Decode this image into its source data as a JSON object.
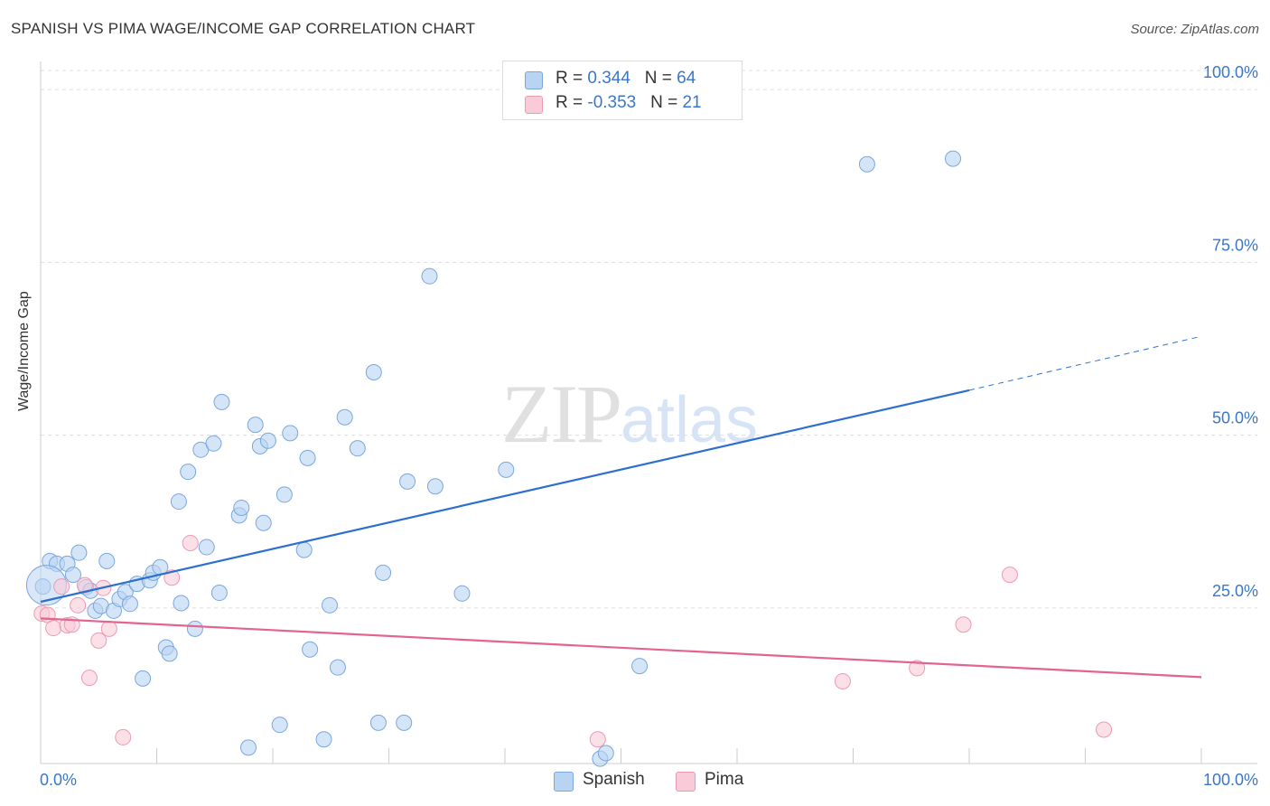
{
  "title": "SPANISH VS PIMA WAGE/INCOME GAP CORRELATION CHART",
  "source": "Source: ZipAtlas.com",
  "watermark": {
    "zip": "ZIP",
    "atlas": "atlas"
  },
  "colors": {
    "spanish_fill": "#b9d3f3",
    "spanish_stroke": "#7aa7de",
    "spanish_line": "#2c6fd0",
    "pima_fill": "#f9cbd8",
    "pima_stroke": "#ec9ab3",
    "pima_line": "#e2648f",
    "axis_text": "#3a77c9",
    "grid": "#dddddd"
  },
  "legend": {
    "rows": [
      {
        "r_label": "R = ",
        "r_value": "0.344",
        "n_label": "N = ",
        "n_value": "64"
      },
      {
        "r_label": "R = ",
        "r_value": "-0.353",
        "n_label": "N = ",
        "n_value": "21"
      }
    ],
    "series_names": [
      "Spanish",
      "Pima"
    ]
  },
  "chart_data": {
    "type": "scatter",
    "title": "SPANISH VS PIMA WAGE/INCOME GAP CORRELATION CHART",
    "xlabel": "",
    "ylabel": "Wage/Income Gap",
    "xlim": [
      0,
      100
    ],
    "ylim": [
      0,
      100
    ],
    "x_tick_labels": [
      "0.0%",
      "100.0%"
    ],
    "y_ticks": [
      25,
      50,
      75,
      100
    ],
    "y_tick_labels": [
      "25.0%",
      "50.0%",
      "75.0%",
      "100.0%"
    ],
    "grid": true,
    "series": [
      {
        "name": "Spanish",
        "r": 0.344,
        "n": 64,
        "points": [
          [
            0.2,
            25.6
          ],
          [
            0.8,
            29.3
          ],
          [
            1.4,
            28.9
          ],
          [
            2.3,
            28.9
          ],
          [
            2.8,
            27.3
          ],
          [
            3.3,
            30.5
          ],
          [
            3.9,
            25.5
          ],
          [
            4.3,
            25.0
          ],
          [
            4.7,
            22.1
          ],
          [
            5.2,
            22.8
          ],
          [
            5.7,
            29.3
          ],
          [
            6.3,
            22.1
          ],
          [
            6.8,
            23.8
          ],
          [
            7.3,
            24.8
          ],
          [
            7.7,
            23.1
          ],
          [
            8.3,
            26.0
          ],
          [
            8.8,
            12.3
          ],
          [
            9.4,
            26.5
          ],
          [
            9.7,
            27.6
          ],
          [
            10.3,
            28.4
          ],
          [
            10.8,
            16.8
          ],
          [
            11.1,
            15.9
          ],
          [
            11.9,
            37.9
          ],
          [
            12.1,
            23.2
          ],
          [
            12.7,
            42.2
          ],
          [
            13.3,
            19.5
          ],
          [
            13.8,
            45.4
          ],
          [
            14.3,
            31.3
          ],
          [
            14.9,
            46.3
          ],
          [
            15.4,
            24.7
          ],
          [
            15.6,
            52.3
          ],
          [
            17.1,
            35.9
          ],
          [
            17.3,
            37.0
          ],
          [
            17.9,
            2.3
          ],
          [
            18.5,
            49.0
          ],
          [
            18.9,
            45.9
          ],
          [
            19.2,
            34.8
          ],
          [
            19.6,
            46.7
          ],
          [
            20.6,
            5.6
          ],
          [
            21.0,
            38.9
          ],
          [
            21.5,
            47.8
          ],
          [
            22.7,
            30.9
          ],
          [
            23.0,
            44.2
          ],
          [
            23.2,
            16.5
          ],
          [
            24.4,
            3.5
          ],
          [
            24.9,
            22.9
          ],
          [
            25.6,
            13.9
          ],
          [
            26.2,
            50.1
          ],
          [
            27.3,
            45.6
          ],
          [
            28.7,
            56.6
          ],
          [
            29.1,
            5.9
          ],
          [
            29.5,
            27.6
          ],
          [
            31.3,
            5.9
          ],
          [
            31.6,
            40.8
          ],
          [
            33.5,
            70.5
          ],
          [
            34.0,
            40.1
          ],
          [
            36.3,
            24.6
          ],
          [
            40.1,
            42.5
          ],
          [
            48.2,
            0.7
          ],
          [
            48.7,
            1.5
          ],
          [
            51.6,
            14.1
          ],
          [
            71.2,
            86.7
          ],
          [
            78.6,
            87.5
          ],
          [
            0.5,
            25.8
          ]
        ],
        "trend": {
          "x_start": 0,
          "y_start": 23.4,
          "x_solid_end": 80,
          "y_solid_end": 54.0,
          "x_dash_end": 100,
          "y_dash_end": 61.8
        }
      },
      {
        "name": "Pima",
        "r": -0.353,
        "n": 21,
        "points": [
          [
            0.1,
            21.7
          ],
          [
            0.6,
            21.5
          ],
          [
            1.1,
            19.6
          ],
          [
            1.8,
            25.6
          ],
          [
            2.3,
            20.0
          ],
          [
            2.7,
            20.1
          ],
          [
            3.2,
            22.9
          ],
          [
            3.8,
            25.8
          ],
          [
            4.2,
            12.4
          ],
          [
            5.0,
            17.8
          ],
          [
            5.4,
            25.4
          ],
          [
            5.9,
            19.5
          ],
          [
            7.1,
            3.8
          ],
          [
            12.9,
            31.9
          ],
          [
            11.3,
            26.9
          ],
          [
            48.0,
            3.5
          ],
          [
            69.1,
            11.9
          ],
          [
            75.5,
            13.8
          ],
          [
            79.5,
            20.1
          ],
          [
            83.5,
            27.3
          ],
          [
            91.6,
            4.9
          ]
        ],
        "trend": {
          "x_start": 0,
          "y_start": 21.0,
          "x_end": 100,
          "y_end": 12.5
        }
      }
    ]
  }
}
